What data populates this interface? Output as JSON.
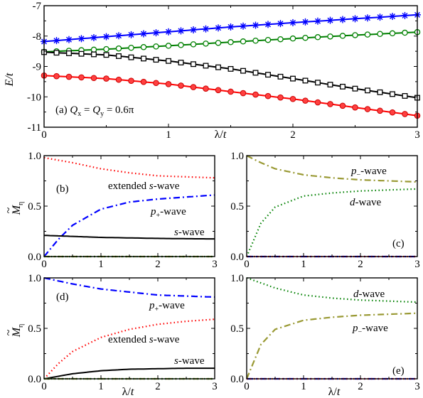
{
  "chart_data": [
    {
      "id": "a",
      "type": "line",
      "xlabel": "λ/t",
      "ylabel": "E/t",
      "xlim": [
        0,
        3
      ],
      "ylim": [
        -11,
        -7
      ],
      "xticks": [
        "0",
        "1",
        "2",
        "3"
      ],
      "yticks": [
        "-11",
        "-10",
        "-9",
        "-8",
        "-7"
      ],
      "annotation": "(a) Q_x = Q_y = 0.6π",
      "series": [
        {
          "marker": "star",
          "color": "#0000ff",
          "x": [
            0,
            0.5,
            1,
            1.5,
            2,
            2.5,
            3
          ],
          "y": [
            -8.18,
            -8.02,
            -7.86,
            -7.7,
            -7.56,
            -7.43,
            -7.3
          ]
        },
        {
          "marker": "open-circle",
          "color": "#008000",
          "x": [
            0,
            0.5,
            1,
            1.5,
            2,
            2.5,
            3
          ],
          "y": [
            -8.52,
            -8.43,
            -8.32,
            -8.2,
            -8.08,
            -7.97,
            -7.87
          ]
        },
        {
          "marker": "open-square",
          "color": "#000000",
          "x": [
            0,
            0.5,
            1,
            1.5,
            2,
            2.5,
            3
          ],
          "y": [
            -8.53,
            -8.62,
            -8.82,
            -9.08,
            -9.4,
            -9.73,
            -10.03
          ]
        },
        {
          "marker": "filled-circle",
          "color": "#ff0000",
          "x": [
            0,
            0.5,
            1,
            1.5,
            2,
            2.5,
            3
          ],
          "y": [
            -9.3,
            -9.4,
            -9.58,
            -9.83,
            -10.07,
            -10.35,
            -10.62
          ]
        }
      ]
    },
    {
      "id": "b",
      "type": "line",
      "ylabel": "M̃η",
      "xlim": [
        0,
        3
      ],
      "ylim": [
        0,
        1
      ],
      "xticks": [
        "0",
        "1",
        "2",
        "3"
      ],
      "yticks": [
        "0.0",
        "0.5",
        "1.0"
      ],
      "panel_label": "(b)",
      "series": [
        {
          "name": "extended s-wave",
          "style": "dotted",
          "color": "#ff0000",
          "x": [
            0,
            0.5,
            1,
            1.5,
            2,
            2.5,
            3
          ],
          "y": [
            0.98,
            0.93,
            0.87,
            0.83,
            0.8,
            0.79,
            0.78
          ]
        },
        {
          "name": "p+-wave",
          "style": "dashdot",
          "color": "#0000ff",
          "x": [
            0,
            0.25,
            0.5,
            1,
            1.5,
            2,
            2.5,
            3
          ],
          "y": [
            0.0,
            0.17,
            0.31,
            0.47,
            0.54,
            0.57,
            0.59,
            0.61
          ]
        },
        {
          "name": "s-wave",
          "style": "solid",
          "color": "#000000",
          "x": [
            0,
            0.5,
            1,
            1.5,
            2,
            2.5,
            3
          ],
          "y": [
            0.21,
            0.2,
            0.19,
            0.185,
            0.18,
            0.177,
            0.175
          ]
        },
        {
          "style": "dashdot",
          "color": "#999933",
          "x": [
            0,
            3
          ],
          "y": [
            0,
            0
          ]
        },
        {
          "style": "dotted",
          "color": "#008000",
          "x": [
            0,
            3
          ],
          "y": [
            0,
            0
          ]
        }
      ]
    },
    {
      "id": "c",
      "type": "line",
      "xlim": [
        0,
        3
      ],
      "ylim": [
        0,
        1
      ],
      "xticks": [
        "0",
        "1",
        "2",
        "3"
      ],
      "yticks": [
        "0.0",
        "0.5",
        "1.0"
      ],
      "panel_label": "(c)",
      "series": [
        {
          "name": "p−-wave",
          "style": "dashdot",
          "color": "#999933",
          "x": [
            0,
            0.25,
            0.5,
            1,
            1.5,
            2,
            2.5,
            3
          ],
          "y": [
            1.0,
            0.93,
            0.87,
            0.81,
            0.78,
            0.76,
            0.75,
            0.74
          ]
        },
        {
          "name": "d-wave",
          "style": "dotted",
          "color": "#008000",
          "x": [
            0,
            0.25,
            0.5,
            1,
            1.5,
            2,
            2.5,
            3
          ],
          "y": [
            0.0,
            0.33,
            0.49,
            0.6,
            0.63,
            0.65,
            0.66,
            0.67
          ]
        },
        {
          "style": "dashdot",
          "color": "#0000ff",
          "x": [
            0,
            3
          ],
          "y": [
            0,
            0
          ]
        },
        {
          "style": "dotted",
          "color": "#ff0000",
          "x": [
            0,
            3
          ],
          "y": [
            0,
            0
          ]
        }
      ]
    },
    {
      "id": "d",
      "type": "line",
      "xlabel": "λ/t",
      "ylabel": "M̃η",
      "xlim": [
        0,
        3
      ],
      "ylim": [
        0,
        1
      ],
      "xticks": [
        "0",
        "1",
        "2",
        "3"
      ],
      "yticks": [
        "0.0",
        "0.5",
        "1.0"
      ],
      "panel_label": "(d)",
      "series": [
        {
          "name": "p+-wave",
          "style": "dashdot",
          "color": "#0000ff",
          "x": [
            0,
            0.5,
            1,
            1.5,
            2,
            2.5,
            3
          ],
          "y": [
            1.0,
            0.94,
            0.89,
            0.86,
            0.83,
            0.82,
            0.81
          ]
        },
        {
          "name": "extended s-wave",
          "style": "dotted",
          "color": "#ff0000",
          "x": [
            0,
            0.25,
            0.5,
            1,
            1.5,
            2,
            2.5,
            3
          ],
          "y": [
            0.0,
            0.15,
            0.27,
            0.41,
            0.49,
            0.54,
            0.57,
            0.59
          ]
        },
        {
          "name": "s-wave",
          "style": "solid",
          "color": "#000000",
          "x": [
            0,
            0.5,
            1,
            1.5,
            2,
            2.5,
            3
          ],
          "y": [
            0.0,
            0.05,
            0.08,
            0.095,
            0.1,
            0.105,
            0.105
          ]
        },
        {
          "style": "dashdot",
          "color": "#999933",
          "x": [
            0,
            3
          ],
          "y": [
            0,
            0
          ]
        },
        {
          "style": "dotted",
          "color": "#008000",
          "x": [
            0,
            3
          ],
          "y": [
            0,
            0
          ]
        }
      ]
    },
    {
      "id": "e",
      "type": "line",
      "xlabel": "λ/t",
      "xlim": [
        0,
        3
      ],
      "ylim": [
        0,
        1
      ],
      "xticks": [
        "0",
        "1",
        "2",
        "3"
      ],
      "yticks": [
        "0.0",
        "0.5",
        "1.0"
      ],
      "panel_label": "(e)",
      "series": [
        {
          "name": "d-wave",
          "style": "dotted",
          "color": "#008000",
          "x": [
            0,
            0.5,
            1,
            1.5,
            2,
            2.5,
            3
          ],
          "y": [
            1.0,
            0.9,
            0.83,
            0.8,
            0.78,
            0.77,
            0.76
          ]
        },
        {
          "name": "p−-wave",
          "style": "dashdot",
          "color": "#999933",
          "x": [
            0,
            0.25,
            0.5,
            1,
            1.5,
            2,
            2.5,
            3
          ],
          "y": [
            0.0,
            0.34,
            0.49,
            0.58,
            0.61,
            0.63,
            0.64,
            0.65
          ]
        },
        {
          "style": "dashdot",
          "color": "#0000ff",
          "x": [
            0,
            3
          ],
          "y": [
            0,
            0
          ]
        },
        {
          "style": "dotted",
          "color": "#ff0000",
          "x": [
            0,
            3
          ],
          "y": [
            0,
            0
          ]
        }
      ]
    }
  ],
  "text": {
    "ext_s": "extended ",
    "s": "s",
    "wave": "-wave",
    "p": "p",
    "d": "d",
    "plus": "+",
    "minus": "−",
    "a_label": "(a) ",
    "Q": "Q",
    "sub_x": "x",
    "sub_y": "y",
    "eq": " = ",
    "val": " = 0.6π",
    "M": "M",
    "tilde": "~",
    "eta": "η",
    "lam": "λ/",
    "t": "t",
    "E": "E/"
  }
}
